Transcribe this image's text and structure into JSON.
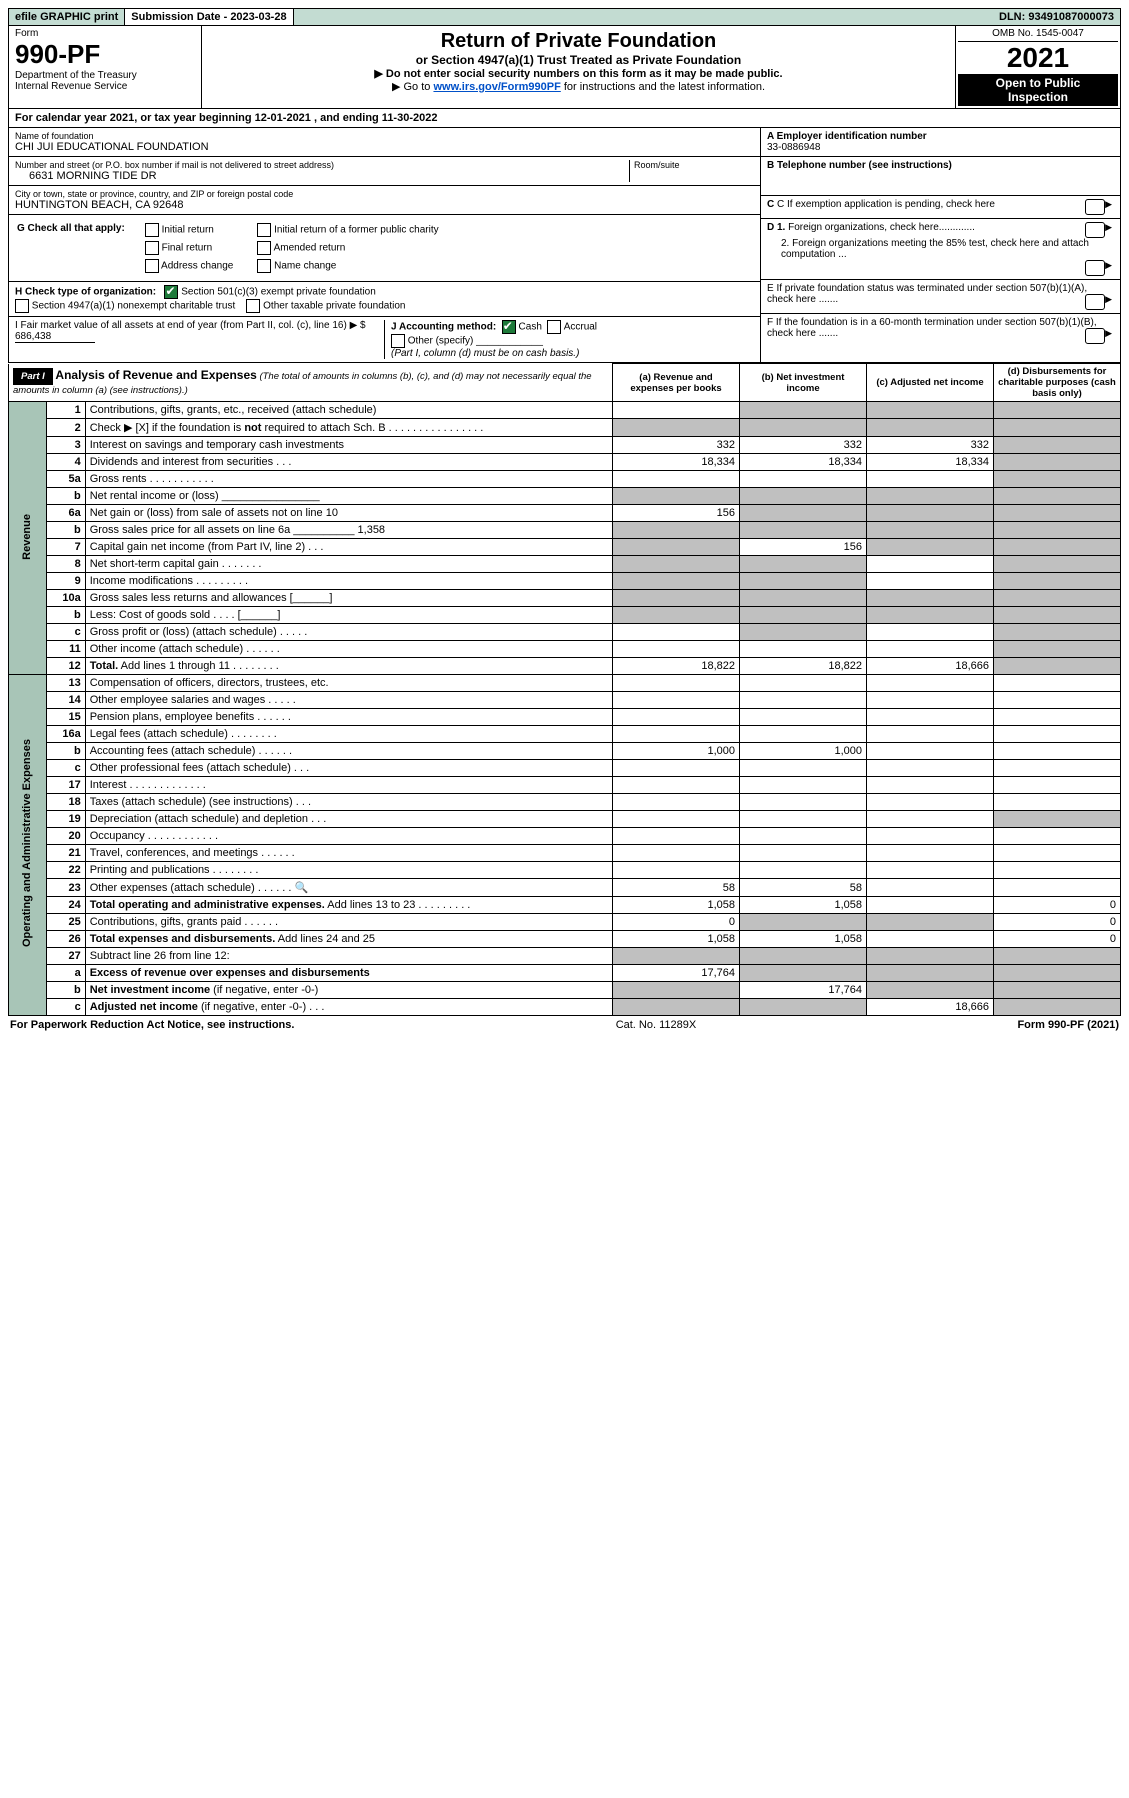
{
  "colors": {
    "header_bg": "#c3dcd2",
    "side_bg": "#a8c5b7",
    "grey": "#c0c0c0",
    "link": "#0050c8",
    "check_green": "#1e7a3a"
  },
  "top": {
    "efile": "efile GRAPHIC print",
    "sub_lbl": "Submission Date - 2023-03-28",
    "dln": "DLN: 93491087000073"
  },
  "form": {
    "prefix": "Form",
    "number": "990-PF",
    "dept": "Department of the Treasury",
    "irs": "Internal Revenue Service",
    "title": "Return of Private Foundation",
    "subtitle": "or Section 4947(a)(1) Trust Treated as Private Foundation",
    "note1": "▶ Do not enter social security numbers on this form as it may be made public.",
    "note2_pre": "▶ Go to ",
    "note2_link": "www.irs.gov/Form990PF",
    "note2_post": " for instructions and the latest information.",
    "omb": "OMB No. 1545-0047",
    "year": "2021",
    "open1": "Open to Public",
    "open2": "Inspection"
  },
  "cal": "For calendar year 2021, or tax year beginning 12-01-2021                                , and ending 11-30-2022",
  "entity": {
    "name_lbl": "Name of foundation",
    "name": "CHI JUI EDUCATIONAL FOUNDATION",
    "street_lbl": "Number and street (or P.O. box number if mail is not delivered to street address)",
    "room_lbl": "Room/suite",
    "street": "6631 MORNING TIDE DR",
    "city_lbl": "City or town, state or province, country, and ZIP or foreign postal code",
    "city": "HUNTINGTON BEACH, CA  92648",
    "g": "G Check all that apply:",
    "g_opts": [
      "Initial return",
      "Final return",
      "Address change",
      "Initial return of a former public charity",
      "Amended return",
      "Name change"
    ],
    "h": "H Check type of organization:",
    "h1": "Section 501(c)(3) exempt private foundation",
    "h2": "Section 4947(a)(1) nonexempt charitable trust",
    "h3": "Other taxable private foundation",
    "i": "I Fair market value of all assets at end of year (from Part II, col. (c), line 16) ▶ $",
    "i_val": "686,438",
    "j": "J Accounting method:",
    "j_cash": "Cash",
    "j_accrual": "Accrual",
    "j_other": "Other (specify)",
    "j_note": "(Part I, column (d) must be on cash basis.)",
    "a_lbl": "A Employer identification number",
    "a_val": "33-0886948",
    "b_lbl": "B Telephone number (see instructions)",
    "c_lbl": "C If exemption application is pending, check here",
    "d1": "D 1. Foreign organizations, check here.............",
    "d2": "2. Foreign organizations meeting the 85% test, check here and attach computation ...",
    "e": "E If private foundation status was terminated under section 507(b)(1)(A), check here .......",
    "f": "F If the foundation is in a 60-month termination under section 507(b)(1)(B), check here ......."
  },
  "part1": {
    "label": "Part I",
    "title": "Analysis of Revenue and Expenses",
    "title_note": "(The total of amounts in columns (b), (c), and (d) may not necessarily equal the amounts in column (a) (see instructions).)",
    "cols": [
      "(a) Revenue and expenses per books",
      "(b) Net investment income",
      "(c) Adjusted net income",
      "(d) Disbursements for charitable purposes (cash basis only)"
    ]
  },
  "sections": {
    "revenue": "Revenue",
    "expenses": "Operating and Administrative Expenses"
  },
  "rows": [
    {
      "sec": "rev",
      "n": "1",
      "d": "Contributions, gifts, grants, etc., received (attach schedule)",
      "a": "",
      "b": "g",
      "c": "g",
      "dd": "g"
    },
    {
      "sec": "rev",
      "n": "2",
      "d_html": "Check ▶ [X] if the foundation is <b>not</b> required to attach Sch. B   .  .  .  .  .  .  .  .  .  .  .  .  .  .  .  .",
      "a": "g",
      "b": "g",
      "c": "g",
      "dd": "g"
    },
    {
      "sec": "rev",
      "n": "3",
      "d": "Interest on savings and temporary cash investments",
      "a": "332",
      "b": "332",
      "c": "332",
      "dd": "g"
    },
    {
      "sec": "rev",
      "n": "4",
      "d": "Dividends and interest from securities   .   .   .",
      "a": "18,334",
      "b": "18,334",
      "c": "18,334",
      "dd": "g"
    },
    {
      "sec": "rev",
      "n": "5a",
      "d": "Gross rents   .   .   .   .   .   .   .   .   .   .   .",
      "a": "",
      "b": "",
      "c": "",
      "dd": "g"
    },
    {
      "sec": "rev",
      "n": "b",
      "d": "Net rental income or (loss)  ________________",
      "a": "g",
      "b": "g",
      "c": "g",
      "dd": "g"
    },
    {
      "sec": "rev",
      "n": "6a",
      "d": "Net gain or (loss) from sale of assets not on line 10",
      "a": "156",
      "b": "g",
      "c": "g",
      "dd": "g"
    },
    {
      "sec": "rev",
      "n": "b",
      "d": "Gross sales price for all assets on line 6a __________ 1,358",
      "a": "g",
      "b": "g",
      "c": "g",
      "dd": "g"
    },
    {
      "sec": "rev",
      "n": "7",
      "d": "Capital gain net income (from Part IV, line 2)   .   .   .",
      "a": "g",
      "b": "156",
      "c": "g",
      "dd": "g"
    },
    {
      "sec": "rev",
      "n": "8",
      "d": "Net short-term capital gain   .   .   .   .   .   .   .",
      "a": "g",
      "b": "g",
      "c": "",
      "dd": "g"
    },
    {
      "sec": "rev",
      "n": "9",
      "d": "Income modifications   .   .   .   .   .   .   .   .   .",
      "a": "g",
      "b": "g",
      "c": "",
      "dd": "g"
    },
    {
      "sec": "rev",
      "n": "10a",
      "d": "Gross sales less returns and allowances  [______]",
      "a": "g",
      "b": "g",
      "c": "g",
      "dd": "g"
    },
    {
      "sec": "rev",
      "n": "b",
      "d": "Less: Cost of goods sold   .   .   .   .   [______]",
      "a": "g",
      "b": "g",
      "c": "g",
      "dd": "g"
    },
    {
      "sec": "rev",
      "n": "c",
      "d": "Gross profit or (loss) (attach schedule)   .   .   .   .   .",
      "a": "",
      "b": "g",
      "c": "",
      "dd": "g"
    },
    {
      "sec": "rev",
      "n": "11",
      "d": "Other income (attach schedule)   .   .   .   .   .   .",
      "a": "",
      "b": "",
      "c": "",
      "dd": "g"
    },
    {
      "sec": "rev",
      "n": "12",
      "d": "<b>Total.</b> Add lines 1 through 11   .   .   .   .   .   .   .   .",
      "a": "18,822",
      "b": "18,822",
      "c": "18,666",
      "dd": "g"
    },
    {
      "sec": "exp",
      "n": "13",
      "d": "Compensation of officers, directors, trustees, etc.",
      "a": "",
      "b": "",
      "c": "",
      "dd": ""
    },
    {
      "sec": "exp",
      "n": "14",
      "d": "Other employee salaries and wages   .   .   .   .   .",
      "a": "",
      "b": "",
      "c": "",
      "dd": ""
    },
    {
      "sec": "exp",
      "n": "15",
      "d": "Pension plans, employee benefits   .   .   .   .   .   .",
      "a": "",
      "b": "",
      "c": "",
      "dd": ""
    },
    {
      "sec": "exp",
      "n": "16a",
      "d": "Legal fees (attach schedule)   .   .   .   .   .   .   .   .",
      "a": "",
      "b": "",
      "c": "",
      "dd": ""
    },
    {
      "sec": "exp",
      "n": "b",
      "d": "Accounting fees (attach schedule)   .   .   .   .   .   .",
      "a": "1,000",
      "b": "1,000",
      "c": "",
      "dd": ""
    },
    {
      "sec": "exp",
      "n": "c",
      "d": "Other professional fees (attach schedule)   .   .   .",
      "a": "",
      "b": "",
      "c": "",
      "dd": ""
    },
    {
      "sec": "exp",
      "n": "17",
      "d": "Interest   .   .   .   .   .   .   .   .   .   .   .   .   .",
      "a": "",
      "b": "",
      "c": "",
      "dd": ""
    },
    {
      "sec": "exp",
      "n": "18",
      "d": "Taxes (attach schedule) (see instructions)   .   .   .",
      "a": "",
      "b": "",
      "c": "",
      "dd": ""
    },
    {
      "sec": "exp",
      "n": "19",
      "d": "Depreciation (attach schedule) and depletion   .   .   .",
      "a": "",
      "b": "",
      "c": "",
      "dd": "g"
    },
    {
      "sec": "exp",
      "n": "20",
      "d": "Occupancy   .   .   .   .   .   .   .   .   .   .   .   .",
      "a": "",
      "b": "",
      "c": "",
      "dd": ""
    },
    {
      "sec": "exp",
      "n": "21",
      "d": "Travel, conferences, and meetings   .   .   .   .   .   .",
      "a": "",
      "b": "",
      "c": "",
      "dd": ""
    },
    {
      "sec": "exp",
      "n": "22",
      "d": "Printing and publications   .   .   .   .   .   .   .   .",
      "a": "",
      "b": "",
      "c": "",
      "dd": ""
    },
    {
      "sec": "exp",
      "n": "23",
      "d": "Other expenses (attach schedule)   .   .   .   .   .   .   🔍",
      "a": "58",
      "b": "58",
      "c": "",
      "dd": ""
    },
    {
      "sec": "exp",
      "n": "24",
      "d": "<b>Total operating and administrative expenses.</b> Add lines 13 to 23   .   .   .   .   .   .   .   .   .",
      "a": "1,058",
      "b": "1,058",
      "c": "",
      "dd": "0"
    },
    {
      "sec": "exp",
      "n": "25",
      "d": "Contributions, gifts, grants paid   .   .   .   .   .   .",
      "a": "0",
      "b": "g",
      "c": "g",
      "dd": "0"
    },
    {
      "sec": "exp",
      "n": "26",
      "d": "<b>Total expenses and disbursements.</b> Add lines 24 and 25",
      "a": "1,058",
      "b": "1,058",
      "c": "",
      "dd": "0"
    },
    {
      "sec": "exp",
      "n": "27",
      "d": "Subtract line 26 from line 12:",
      "a": "g",
      "b": "g",
      "c": "g",
      "dd": "g"
    },
    {
      "sec": "exp",
      "n": "a",
      "d": "<b>Excess of revenue over expenses and disbursements</b>",
      "a": "17,764",
      "b": "g",
      "c": "g",
      "dd": "g"
    },
    {
      "sec": "exp",
      "n": "b",
      "d": "<b>Net investment income</b> (if negative, enter -0-)",
      "a": "g",
      "b": "17,764",
      "c": "g",
      "dd": "g"
    },
    {
      "sec": "exp",
      "n": "c",
      "d": "<b>Adjusted net income</b> (if negative, enter -0-)   .   .   .",
      "a": "g",
      "b": "g",
      "c": "18,666",
      "dd": "g"
    }
  ],
  "footer": {
    "left": "For Paperwork Reduction Act Notice, see instructions.",
    "mid": "Cat. No. 11289X",
    "right": "Form 990-PF (2021)"
  }
}
